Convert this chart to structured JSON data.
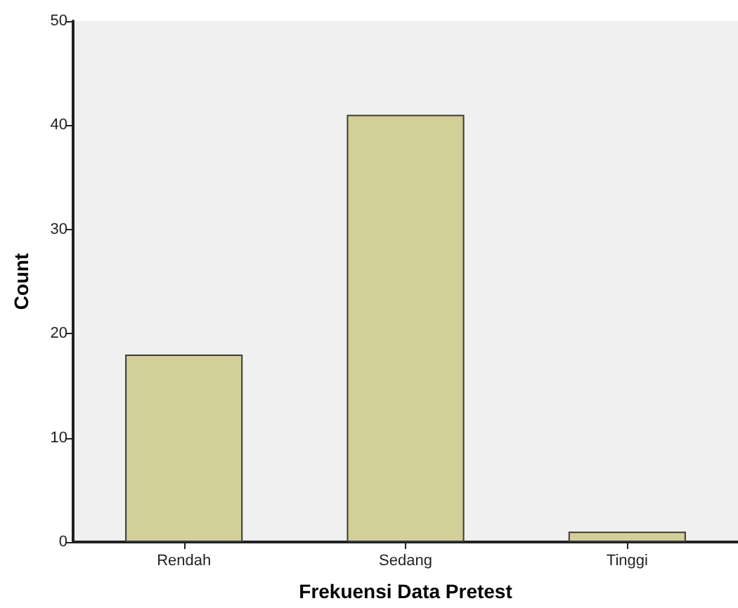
{
  "chart_data": {
    "type": "bar",
    "xlabel": "Frekuensi Data Pretest",
    "ylabel": "Count",
    "categories": [
      "Rendah",
      "Sedang",
      "Tinggi"
    ],
    "values": [
      18,
      41,
      1
    ],
    "color": "#d3cf98",
    "ylim": [
      0,
      50
    ],
    "yticks": [
      0,
      10,
      20,
      30,
      40,
      50
    ],
    "grid": false
  }
}
